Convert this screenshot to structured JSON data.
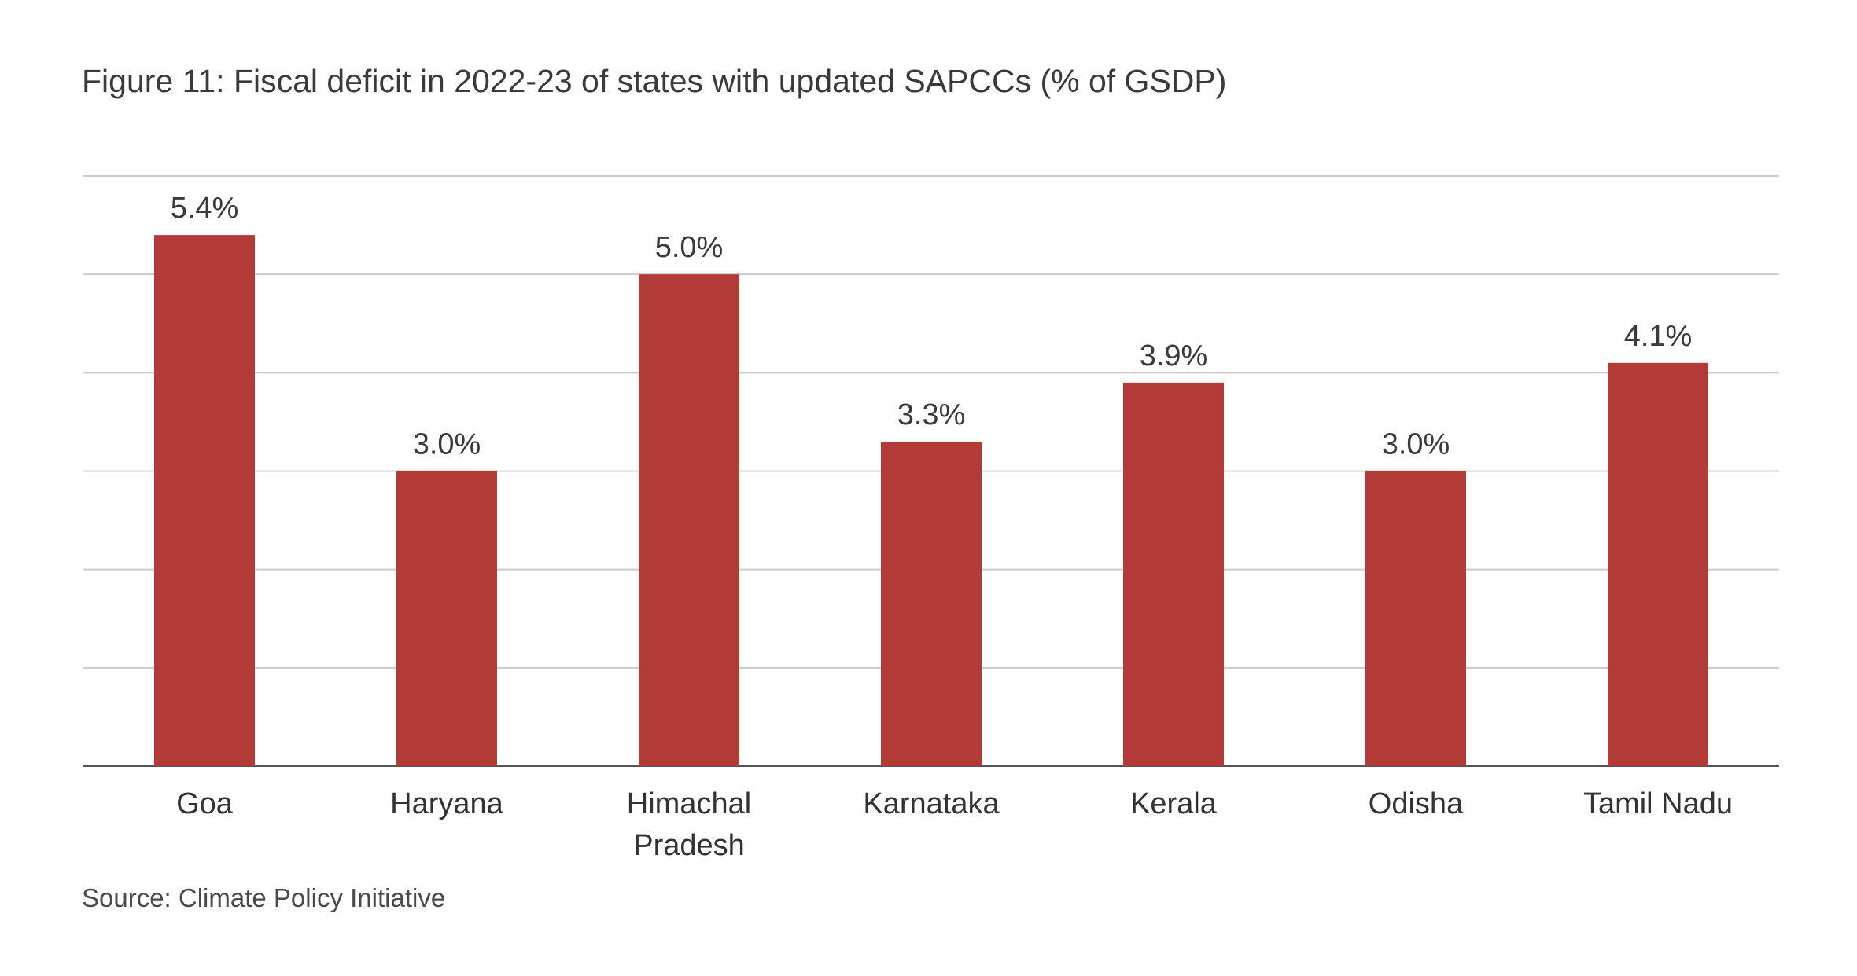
{
  "title": "Figure 11: Fiscal deficit in 2022-23 of states with updated SAPCCs (% of GSDP)",
  "source": "Source: Climate Policy Initiative",
  "chart_data": {
    "type": "bar",
    "title": "Figure 11: Fiscal deficit in 2022-23 of states with updated SAPCCs (% of GSDP)",
    "categories": [
      [
        "Goa"
      ],
      [
        "Haryana"
      ],
      [
        "Himachal",
        "Pradesh"
      ],
      [
        "Karnataka"
      ],
      [
        "Kerala"
      ],
      [
        "Odisha"
      ],
      [
        "Tamil Nadu"
      ]
    ],
    "values": [
      5.4,
      3.0,
      5.0,
      3.3,
      3.9,
      3.0,
      4.1
    ],
    "value_labels": [
      "5.4%",
      "3.0%",
      "5.0%",
      "3.3%",
      "3.9%",
      "3.0%",
      "4.1%"
    ],
    "xlabel": "",
    "ylabel": "",
    "ylim": [
      0,
      6
    ],
    "grid": true,
    "y_tick_labels_shown": false,
    "legend": "none",
    "bar_color": "#b33b36"
  }
}
